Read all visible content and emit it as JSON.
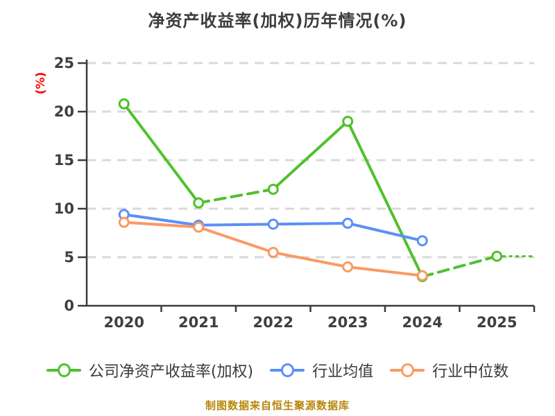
{
  "chart_data": {
    "type": "line",
    "title": "净资产收益率(加权)历年情况(%)",
    "ylabel": "(%)",
    "footer": "制图数据来自恒生聚源数据库",
    "categories": [
      "2020",
      "2021",
      "2022",
      "2023",
      "2024",
      "2025"
    ],
    "yticks": [
      0,
      5,
      10,
      15,
      20,
      25
    ],
    "ylim": [
      0,
      25
    ],
    "grid": "horizontal-dashed",
    "legend_position": "bottom",
    "series": [
      {
        "name": "公司净资产收益率(加权)",
        "color": "#4FC12C",
        "values": [
          20.8,
          10.6,
          12.0,
          19.0,
          3.0,
          5.1
        ],
        "segment_styles": [
          "solid",
          "dashed",
          "solid",
          "solid",
          "dashed"
        ],
        "dotted_tail_after_last_point": true
      },
      {
        "name": "行业均值",
        "color": "#5B8FF9",
        "values": [
          9.4,
          8.3,
          8.4,
          8.5,
          6.7,
          null
        ],
        "segment_styles": [
          "solid",
          "solid",
          "solid",
          "solid"
        ],
        "dotted_tail_after_last_point": false
      },
      {
        "name": "行业中位数",
        "color": "#FA9A62",
        "values": [
          8.6,
          8.1,
          5.5,
          4.0,
          3.1,
          null
        ],
        "segment_styles": [
          "solid",
          "solid",
          "solid",
          "solid"
        ],
        "dotted_tail_after_last_point": false
      }
    ],
    "colors": {
      "background": "#FFFFFF",
      "title": "#3C3C3C",
      "axis": "#3A3A3A",
      "tick_label": "#3F3F3F",
      "grid": "#D9D9D9",
      "ylabel": "#FF0000",
      "footer": "#B8860B",
      "marker_fill": "#FFFFFF",
      "legend_text": "#3A3A3A"
    }
  }
}
